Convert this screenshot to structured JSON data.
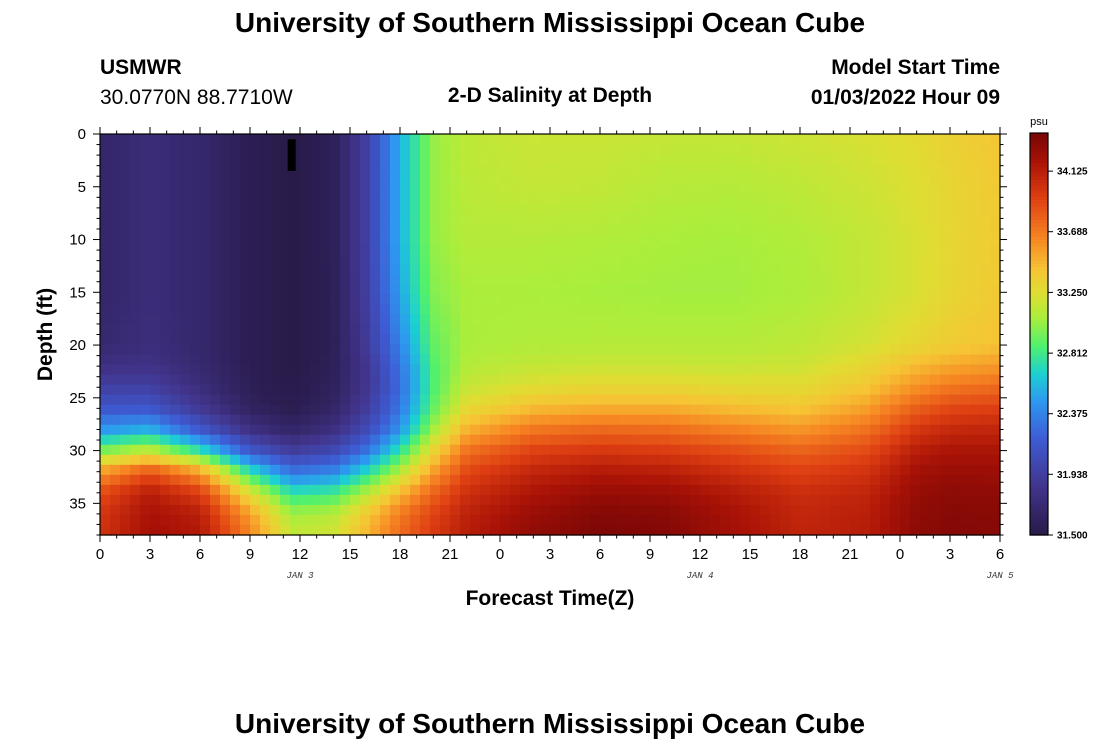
{
  "page": {
    "title": "University of Southern Mississippi Ocean Cube",
    "station_id": "USMWR",
    "station_coords": "30.0770N  88.7710W",
    "plot_title": "2-D Salinity at Depth",
    "model_start_label": "Model Start Time",
    "model_start_value": "01/03/2022 Hour 09",
    "footer_title": "University of Southern Mississippi Ocean Cube"
  },
  "chart_data": {
    "type": "heatmap",
    "title": "2-D Salinity at Depth",
    "xlabel": "Forecast Time(Z)",
    "ylabel": "Depth (ft)",
    "x_tick_labels": [
      "0",
      "3",
      "6",
      "9",
      "12",
      "15",
      "18",
      "21",
      "0",
      "3",
      "6",
      "9",
      "12",
      "15",
      "18",
      "21",
      "0",
      "3",
      "6"
    ],
    "x_date_labels": [
      {
        "label": "JAN 3",
        "forecast_hour": 12
      },
      {
        "label": "JAN 4",
        "forecast_hour": 36
      },
      {
        "label": "JAN 5",
        "forecast_hour": 54
      }
    ],
    "xlim_hours": [
      0,
      54
    ],
    "y_ticks": [
      0,
      5,
      10,
      15,
      20,
      25,
      30,
      35
    ],
    "ylim_ft": [
      0,
      38
    ],
    "y_inverted": true,
    "colorbar": {
      "unit": "psu",
      "ticks": [
        "34.125",
        "33.688",
        "33.250",
        "32.812",
        "32.375",
        "31.938",
        "31.500"
      ],
      "min": 31.5,
      "max": 34.4
    },
    "marker": {
      "forecast_hour": 11.5,
      "depth_ft_top": 0.5,
      "depth_ft_bottom": 3.5
    },
    "salinity_field_psu": {
      "description_of_grid": "rows = depth ft, cols = forecast hour",
      "hours": [
        0,
        3,
        6,
        9,
        11.5,
        14,
        16,
        18,
        20,
        22,
        26,
        30,
        34,
        38,
        42,
        46,
        49,
        51,
        54
      ],
      "depths": [
        0,
        5,
        10,
        15,
        20,
        22,
        24,
        26,
        28,
        30,
        32,
        34,
        36,
        38
      ],
      "values": [
        [
          31.66,
          31.75,
          31.68,
          31.56,
          31.5,
          31.58,
          31.95,
          32.55,
          33.02,
          33.13,
          33.17,
          33.17,
          33.15,
          33.15,
          33.18,
          33.22,
          33.27,
          33.33,
          33.4
        ],
        [
          31.66,
          31.75,
          31.68,
          31.56,
          31.5,
          31.58,
          31.95,
          32.55,
          33.02,
          33.12,
          33.15,
          33.14,
          33.11,
          33.1,
          33.13,
          33.18,
          33.24,
          33.3,
          33.38
        ],
        [
          31.66,
          31.75,
          31.68,
          31.56,
          31.5,
          31.58,
          31.95,
          32.55,
          33.02,
          33.1,
          33.1,
          33.09,
          33.07,
          33.06,
          33.09,
          33.15,
          33.22,
          33.29,
          33.37
        ],
        [
          31.66,
          31.75,
          31.68,
          31.56,
          31.5,
          31.57,
          31.94,
          32.5,
          32.98,
          33.07,
          33.07,
          33.06,
          33.05,
          33.05,
          33.08,
          33.15,
          33.22,
          33.3,
          33.38
        ],
        [
          31.7,
          31.76,
          31.68,
          31.56,
          31.5,
          31.57,
          31.9,
          32.38,
          32.9,
          33.07,
          33.09,
          33.1,
          33.1,
          33.1,
          33.13,
          33.2,
          33.3,
          33.36,
          33.42
        ],
        [
          31.8,
          31.82,
          31.7,
          31.56,
          31.5,
          31.58,
          31.86,
          32.3,
          32.86,
          33.1,
          33.15,
          33.17,
          33.17,
          33.16,
          33.18,
          33.3,
          33.45,
          33.52,
          33.57
        ],
        [
          31.95,
          31.96,
          31.76,
          31.57,
          31.51,
          31.6,
          31.86,
          32.27,
          32.85,
          33.16,
          33.25,
          33.3,
          33.3,
          33.27,
          33.27,
          33.4,
          33.6,
          33.7,
          33.76
        ],
        [
          32.15,
          32.15,
          31.88,
          31.62,
          31.54,
          31.65,
          31.92,
          32.32,
          32.9,
          33.28,
          33.45,
          33.5,
          33.5,
          33.44,
          33.4,
          33.55,
          33.8,
          33.9,
          33.94
        ],
        [
          32.45,
          32.55,
          32.15,
          31.8,
          31.65,
          31.78,
          32.05,
          32.45,
          33.05,
          33.48,
          33.7,
          33.76,
          33.74,
          33.66,
          33.58,
          33.72,
          33.98,
          34.06,
          34.08
        ],
        [
          32.95,
          33.15,
          32.75,
          32.15,
          31.92,
          32.02,
          32.3,
          32.75,
          33.3,
          33.72,
          33.92,
          33.98,
          33.95,
          33.87,
          33.78,
          33.88,
          34.12,
          34.18,
          34.18
        ],
        [
          33.55,
          33.85,
          33.55,
          32.75,
          32.3,
          32.38,
          32.7,
          33.1,
          33.55,
          33.9,
          34.08,
          34.15,
          34.12,
          34.02,
          33.93,
          34.0,
          34.22,
          34.26,
          34.25
        ],
        [
          33.88,
          34.13,
          33.95,
          33.25,
          32.75,
          32.8,
          33.1,
          33.45,
          33.78,
          34.02,
          34.18,
          34.27,
          34.25,
          34.14,
          34.03,
          34.08,
          34.27,
          34.31,
          34.3
        ],
        [
          33.98,
          34.2,
          34.12,
          33.55,
          33.05,
          33.1,
          33.38,
          33.68,
          33.92,
          34.1,
          34.26,
          34.35,
          34.33,
          34.2,
          34.07,
          34.12,
          34.3,
          34.34,
          34.33
        ],
        [
          34.0,
          34.22,
          34.16,
          33.65,
          33.15,
          33.2,
          33.47,
          33.75,
          33.97,
          34.13,
          34.3,
          34.38,
          34.35,
          34.22,
          34.08,
          34.13,
          34.31,
          34.35,
          34.34
        ]
      ]
    }
  }
}
